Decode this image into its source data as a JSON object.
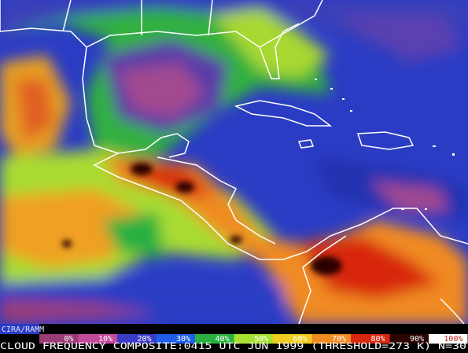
{
  "credit": "CIRA/RAMM",
  "legend": [
    {
      "label": "0%",
      "color": "#9a3c78"
    },
    {
      "label": "10%",
      "color": "#c44a9c"
    },
    {
      "label": "20%",
      "color": "#3a3cc8"
    },
    {
      "label": "30%",
      "color": "#1f5ce8"
    },
    {
      "label": "40%",
      "color": "#28b040"
    },
    {
      "label": "50%",
      "color": "#a8e030"
    },
    {
      "label": "60%",
      "color": "#f0cc20"
    },
    {
      "label": "70%",
      "color": "#f08a20"
    },
    {
      "label": "80%",
      "color": "#d82810"
    },
    {
      "label": "90%",
      "color": "#2a0400"
    },
    {
      "label": "100%",
      "color": "#ffffff"
    }
  ],
  "caption": "CLOUD FREQUENCY COMPOSITE:0415 UTC JUN 1999 (THRESHOLD=273 K) N=30"
}
